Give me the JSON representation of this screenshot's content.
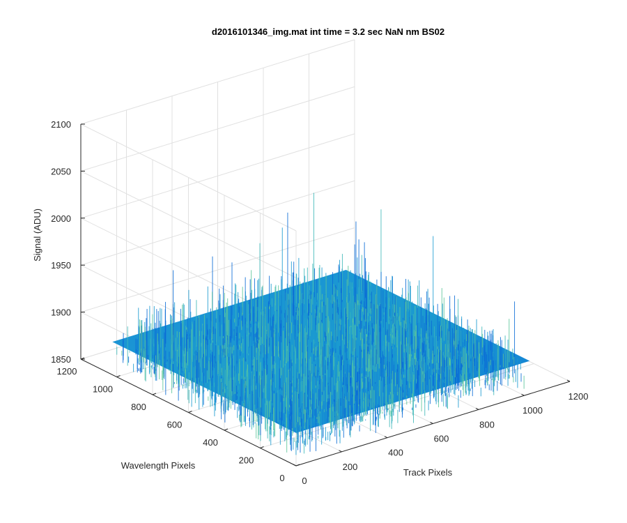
{
  "chart_data": {
    "type": "surface",
    "title": "d2016101346_img.mat int time = 3.2 sec  NaN nm BS02",
    "xlabel": "Track Pixels",
    "ylabel": "Wavelength Pixels",
    "zlabel": "Signal (ADU)",
    "xlim": [
      0,
      1200
    ],
    "ylim": [
      0,
      1200
    ],
    "zlim": [
      1850,
      2100
    ],
    "x_ticks": [
      "0",
      "200",
      "400",
      "600",
      "800",
      "1000",
      "1200"
    ],
    "y_ticks": [
      "0",
      "200",
      "400",
      "600",
      "800",
      "1000",
      "1200"
    ],
    "z_ticks": [
      "1850",
      "1900",
      "1950",
      "2000",
      "2050",
      "2100"
    ],
    "grid": true,
    "colormap": "parula",
    "surface_extent": {
      "x": [
        0,
        1024
      ],
      "y": [
        0,
        1024
      ]
    },
    "signal": {
      "base": 1885,
      "typical_range": [
        1870,
        1920
      ],
      "peak": 2000
    },
    "colors": {
      "low": "#0b6bd6",
      "mid": "#1a9ad0",
      "high": "#3fb8b8",
      "spike": "#5cc59a"
    }
  }
}
